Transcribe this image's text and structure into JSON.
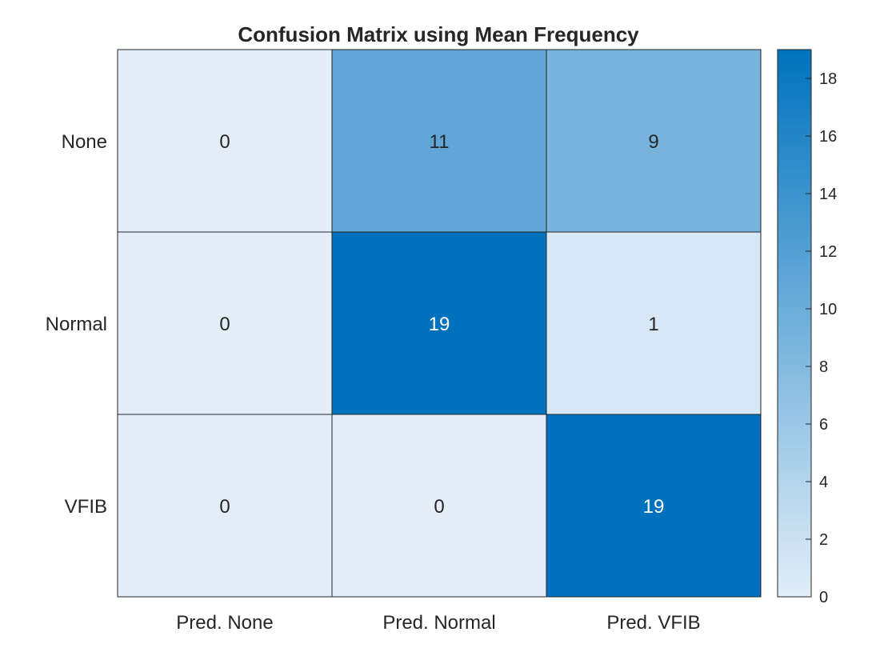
{
  "chart_data": {
    "type": "heatmap",
    "title": "Confusion Matrix using Mean Frequency",
    "row_labels": [
      "None",
      "Normal",
      "VFIB"
    ],
    "col_labels": [
      "Pred. None",
      "Pred. Normal",
      "Pred. VFIB"
    ],
    "values": [
      [
        0,
        11,
        9
      ],
      [
        0,
        19,
        1
      ],
      [
        0,
        0,
        19
      ]
    ],
    "colorbar": {
      "range": [
        0,
        19
      ],
      "ticks": [
        0,
        2,
        4,
        6,
        8,
        10,
        12,
        14,
        16,
        18
      ],
      "color_low": "#e3eef8",
      "color_high": "#0072bd"
    },
    "grid": false
  }
}
